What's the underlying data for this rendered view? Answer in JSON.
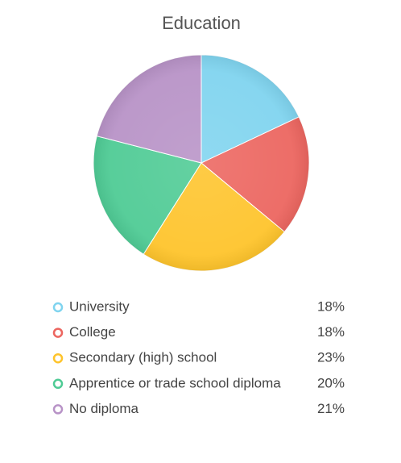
{
  "chart_data": {
    "type": "pie",
    "title": "Education",
    "categories": [
      "University",
      "College",
      "Secondary (high) school",
      "Apprentice or trade school diploma",
      "No diploma"
    ],
    "values": [
      18,
      18,
      23,
      20,
      21
    ],
    "value_labels": [
      "18%",
      "18%",
      "23%",
      "20%",
      "21%"
    ],
    "colors": [
      "#80d4ef",
      "#ec6660",
      "#fec42c",
      "#4fcb95",
      "#b893c7"
    ]
  }
}
